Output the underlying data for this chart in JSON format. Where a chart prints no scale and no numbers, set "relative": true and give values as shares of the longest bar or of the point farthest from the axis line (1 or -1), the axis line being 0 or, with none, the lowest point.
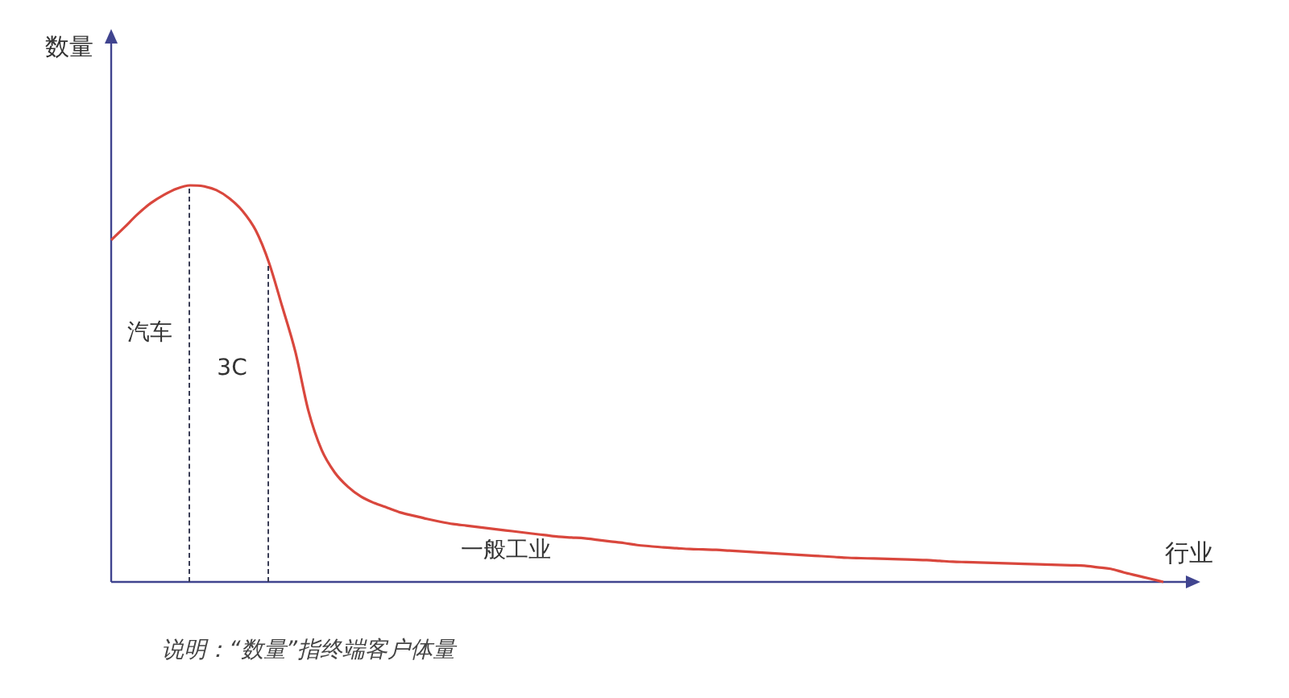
{
  "chart_data": {
    "type": "line",
    "relative": true,
    "xlabel": "行业",
    "categories": [
      null,
      null,
      null,
      null,
      null,
      null,
      null,
      null,
      null,
      null,
      null,
      null,
      null,
      null,
      null,
      null,
      null,
      null,
      null,
      null,
      null,
      null,
      null,
      null,
      null,
      null,
      null,
      null,
      null,
      null,
      null,
      null,
      null,
      null,
      null,
      null,
      null,
      null,
      null,
      null,
      null,
      null,
      null,
      null,
      null,
      null,
      null,
      null,
      null,
      null,
      null,
      null,
      null,
      null,
      null,
      null,
      null,
      null,
      null,
      null,
      null,
      null,
      null,
      null,
      null,
      null,
      null,
      null,
      null,
      null,
      null,
      null,
      null,
      null,
      null,
      null,
      null,
      null,
      null,
      null,
      null
    ],
    "series": [
      {
        "color": "#d9473d",
        "values": [
          0.862,
          0.894,
          0.927,
          0.955,
          0.976,
          0.992,
          1,
          0.998,
          0.988,
          0.967,
          0.935,
          0.886,
          0.805,
          0.695,
          0.581,
          0.431,
          0.333,
          0.276,
          0.24,
          0.215,
          0.199,
          0.187,
          0.175,
          0.167,
          0.159,
          0.152,
          0.146,
          0.142,
          0.138,
          0.134,
          0.13,
          0.126,
          0.122,
          0.118,
          0.114,
          0.112,
          0.11,
          0.106,
          0.102,
          0.098,
          0.093,
          0.09,
          0.087,
          0.085,
          0.083,
          0.082,
          0.081,
          0.079,
          0.077,
          0.075,
          0.073,
          0.071,
          0.069,
          0.067,
          0.065,
          0.063,
          0.061,
          0.06,
          0.059,
          0.058,
          0.057,
          0.056,
          0.055,
          0.053,
          0.051,
          0.05,
          0.049,
          0.048,
          0.047,
          0.046,
          0.045,
          0.044,
          0.043,
          0.042,
          0.041,
          0.037,
          0.033,
          0.024,
          0.016,
          0.008,
          0
        ]
      }
    ],
    "annotations": [
      "数量",
      "汽车",
      "3C",
      "一般工业",
      "说明：“数量”指终端客户体量"
    ]
  }
}
